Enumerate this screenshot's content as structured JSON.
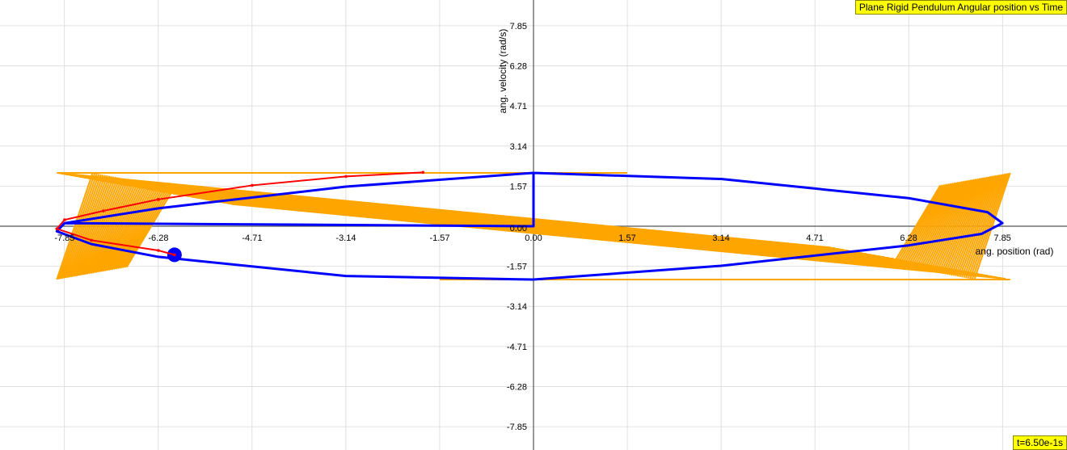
{
  "title": "Plane Rigid Pendulum Angular position vs Time",
  "time_readout": "t=6.50e-1s",
  "colors": {
    "grid": "#e0e0e0",
    "axis": "#555555",
    "orange": "#ffa500",
    "blue": "#0000ff",
    "red": "#ff0000"
  },
  "chart_data": {
    "type": "line",
    "xlabel": "ang. position (rad)",
    "ylabel": "ang. velocity (rad/s)",
    "xlim": [
      -8.62,
      10.68
    ],
    "ylim": [
      -8.56,
      8.8
    ],
    "x_ticks": [
      "-7.85",
      "-6.28",
      "-4.71",
      "-3.14",
      "-1.57",
      "0.00",
      "1.57",
      "3.14",
      "4.71",
      "6.28",
      "7.85"
    ],
    "y_ticks": [
      "7.85",
      "6.28",
      "4.71",
      "3.14",
      "1.57",
      "0.00",
      "-1.57",
      "-3.14",
      "-4.71",
      "-6.28",
      "-7.85"
    ],
    "series": [
      {
        "color": "orange",
        "x_range": [
          -7.98,
          7.98
        ],
        "y_range": [
          -2.09,
          2.09
        ],
        "cycles": 40
      },
      {
        "color": "blue",
        "points": [
          [
            0,
            0
          ],
          [
            0,
            2.09
          ],
          [
            3.14,
            1.85
          ],
          [
            6.28,
            1.1
          ],
          [
            7.6,
            0.55
          ],
          [
            7.85,
            0.12
          ],
          [
            7.5,
            -0.3
          ],
          [
            6.28,
            -0.75
          ],
          [
            3.14,
            -1.55
          ],
          [
            0,
            -2.09
          ],
          [
            -3.14,
            -1.95
          ],
          [
            -6.28,
            -1.2
          ],
          [
            -7.4,
            -0.7
          ],
          [
            -7.98,
            -0.2
          ],
          [
            -7.85,
            0.12
          ],
          [
            -6.28,
            0.7
          ],
          [
            -3.14,
            1.55
          ],
          [
            0,
            2.09
          ],
          [
            0,
            0
          ],
          [
            -7.85,
            0.12
          ]
        ],
        "marker": [
          -6.01,
          -1.12
        ]
      },
      {
        "color": "red",
        "points": [
          [
            -1.85,
            2.11
          ],
          [
            -3.14,
            1.95
          ],
          [
            -4.71,
            1.6
          ],
          [
            -6.28,
            1.05
          ],
          [
            -7.2,
            0.6
          ],
          [
            -7.85,
            0.25
          ],
          [
            -7.98,
            -0.1
          ],
          [
            -7.4,
            -0.55
          ],
          [
            -6.28,
            -0.95
          ],
          [
            -6.01,
            -1.12
          ]
        ]
      }
    ]
  }
}
